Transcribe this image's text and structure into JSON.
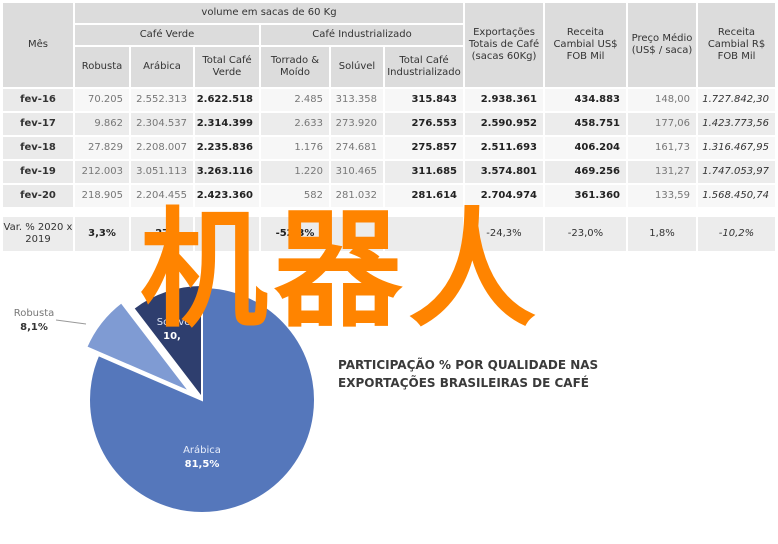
{
  "table": {
    "header": {
      "mes": "Mês",
      "volume": "volume em sacas de 60 Kg",
      "cafe_verde": "Café Verde",
      "cafe_industrializado": "Café Industrializado",
      "robusta": "Robusta",
      "arabica": "Arábica",
      "total_verde": "Total Café Verde",
      "torrado": "Torrado & Moído",
      "soluvel": "Solúvel",
      "total_ind": "Total Café Industrializado",
      "exportacoes": "Exportações Totais de Café (sacas 60Kg)",
      "receita_us": "Receita Cambial US$ FOB Mil",
      "preco": "Preço Médio (US$ / saca)",
      "receita_rs": "Receita Cambial R$ FOB Mil"
    },
    "rows": [
      {
        "mes": "fev-16",
        "robusta": "70.205",
        "arabica": "2.552.313",
        "total_verde": "2.622.518",
        "torrado": "2.485",
        "soluvel": "313.358",
        "total_ind": "315.843",
        "exportacoes": "2.938.361",
        "receita_us": "434.883",
        "preco": "148,00",
        "receita_rs": "1.727.842,30"
      },
      {
        "mes": "fev-17",
        "robusta": "9.862",
        "arabica": "2.304.537",
        "total_verde": "2.314.399",
        "torrado": "2.633",
        "soluvel": "273.920",
        "total_ind": "276.553",
        "exportacoes": "2.590.952",
        "receita_us": "458.751",
        "preco": "177,06",
        "receita_rs": "1.423.773,56"
      },
      {
        "mes": "fev-18",
        "robusta": "27.829",
        "arabica": "2.208.007",
        "total_verde": "2.235.836",
        "torrado": "1.176",
        "soluvel": "274.681",
        "total_ind": "275.857",
        "exportacoes": "2.511.693",
        "receita_us": "406.204",
        "preco": "161,73",
        "receita_rs": "1.316.467,95"
      },
      {
        "mes": "fev-19",
        "robusta": "212.003",
        "arabica": "3.051.113",
        "total_verde": "3.263.116",
        "torrado": "1.220",
        "soluvel": "310.465",
        "total_ind": "311.685",
        "exportacoes": "3.574.801",
        "receita_us": "469.256",
        "preco": "131,27",
        "receita_rs": "1.747.053,97"
      },
      {
        "mes": "fev-20",
        "robusta": "218.905",
        "arabica": "2.204.455",
        "total_verde": "2.423.360",
        "torrado": "582",
        "soluvel": "281.032",
        "total_ind": "281.614",
        "exportacoes": "2.704.974",
        "receita_us": "361.360",
        "preco": "133,59",
        "receita_rs": "1.568.450,74"
      }
    ],
    "var": {
      "label": "Var. % 2020 x 2019",
      "robusta": "3,3%",
      "arabica": "-27,",
      "torrado": "-52,3%",
      "soluvel": "",
      "total_ind": "",
      "exportacoes": "-24,3%",
      "receita_us": "-23,0%",
      "preco": "1,8%",
      "receita_rs": "-10,2%"
    }
  },
  "chart_data": {
    "type": "pie",
    "title": "PARTICIPAÇÃO % POR QUALIDADE NAS EXPORTAÇÕES BRASILEIRAS DE CAFÉ",
    "title_visible_line1": "PARTICIPAÇÃO % POR QUALIDADE NAS",
    "title_visible_line2": "EXPORTAÇÕES BRASILEIRAS DE CAFÉ",
    "slices": [
      {
        "name": "Arábica",
        "value": 81.5,
        "label": "81,5%",
        "color": "#5577bb"
      },
      {
        "name": "Robusta",
        "value": 8.1,
        "label": "8,1%",
        "color": "#7f9bd3"
      },
      {
        "name": "Solúvel",
        "value": 10.4,
        "label": "10,",
        "color": "#2e3e6e"
      }
    ],
    "legend": "none"
  },
  "watermark": {
    "text": "机器人",
    "color": "#ff8400"
  }
}
